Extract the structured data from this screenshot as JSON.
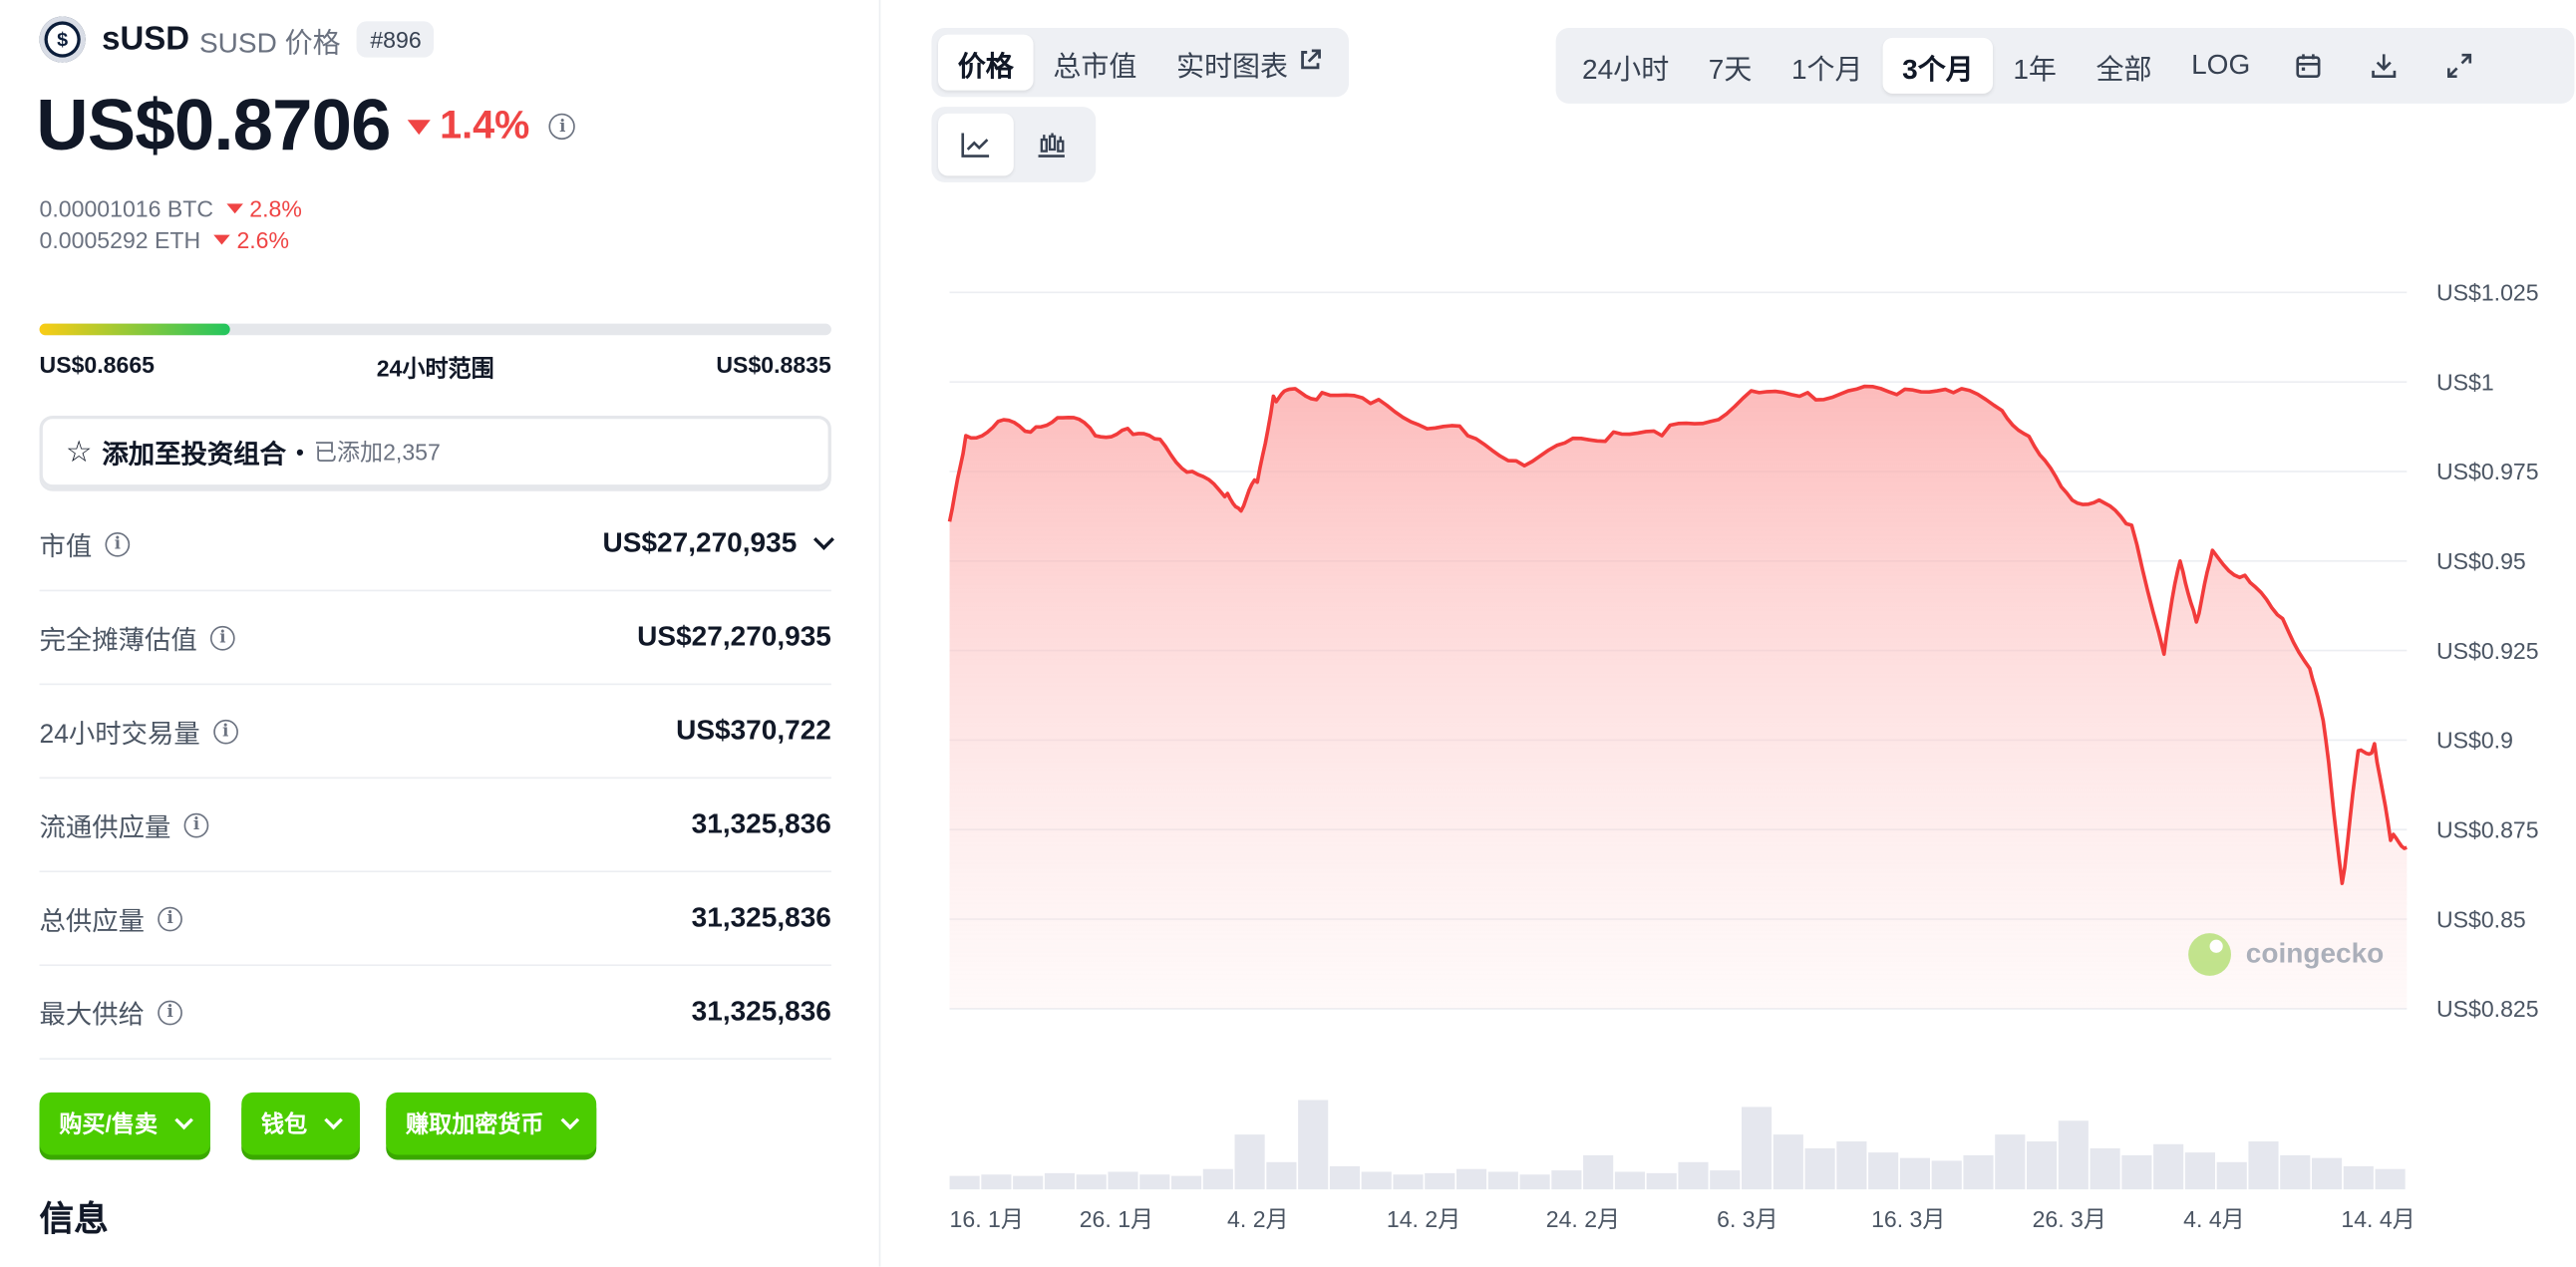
{
  "coin": {
    "symbol": "sUSD",
    "sub_title": "SUSD 价格",
    "rank": "#896",
    "logo_glyph": "$",
    "price": "US$0.8706",
    "change_24h": "1.4%",
    "btc_price": "0.00001016 BTC",
    "btc_change": "2.8%",
    "eth_price": "0.0005292 ETH",
    "eth_change": "2.6%"
  },
  "range": {
    "low": "US$0.8665",
    "label": "24小时范围",
    "high": "US$0.8835",
    "position_fraction": 0.24
  },
  "portfolio": {
    "label": "添加至投资组合",
    "added": "已添加2,357",
    "icon": "star-icon"
  },
  "stats": [
    {
      "key": "市值",
      "value": "US$27,270,935",
      "expandable": true
    },
    {
      "key": "完全摊薄估值",
      "value": "US$27,270,935"
    },
    {
      "key": "24小时交易量",
      "value": "US$370,722"
    },
    {
      "key": "流通供应量",
      "value": "31,325,836"
    },
    {
      "key": "总供应量",
      "value": "31,325,836"
    },
    {
      "key": "最大供给",
      "value": "31,325,836"
    }
  ],
  "actions": {
    "buy_sell": "购买/售卖",
    "wallet": "钱包",
    "earn": "赚取加密货币"
  },
  "info_title": "信息",
  "chart_tabs": {
    "price": "价格",
    "market_cap": "总市值",
    "live_chart": "实时图表"
  },
  "range_tabs": [
    "24小时",
    "7天",
    "1个月",
    "3个月",
    "1年",
    "全部",
    "LOG"
  ],
  "active_range": "3个月",
  "chart_type_icons": [
    "line-chart-icon",
    "candlestick-chart-icon"
  ],
  "toolbar_icons": [
    "calendar-icon",
    "download-icon",
    "expand-icon"
  ],
  "colors": {
    "accent_green": "#4bcc00",
    "negative": "#ef4444",
    "line": "#f23b3b"
  },
  "watermark": "coingecko",
  "chart_data": {
    "type": "area",
    "title": "",
    "xlabel": "",
    "ylabel": "",
    "ylim": [
      0.825,
      1.025
    ],
    "y_ticks": [
      "US$1.025",
      "US$1",
      "US$0.975",
      "US$0.95",
      "US$0.925",
      "US$0.9",
      "US$0.875",
      "US$0.85",
      "US$0.825"
    ],
    "x_ticks": [
      "16. 1月",
      "26. 1月",
      "4. 2月",
      "14. 2月",
      "24. 2月",
      "6. 3月",
      "16. 3月",
      "26. 3月",
      "4. 4月",
      "14. 4月"
    ],
    "grid": true,
    "series": [
      {
        "x": [
          "2025-01-15",
          "2025-01-16",
          "2025-01-18",
          "2025-01-20",
          "2025-01-22",
          "2025-01-24",
          "2025-01-26",
          "2025-01-28",
          "2025-01-30",
          "2025-02-01",
          "2025-02-02",
          "2025-02-03",
          "2025-02-04",
          "2025-02-05",
          "2025-02-07",
          "2025-02-10",
          "2025-02-13",
          "2025-02-16",
          "2025-02-19",
          "2025-02-22",
          "2025-02-25",
          "2025-02-28",
          "2025-03-03",
          "2025-03-06",
          "2025-03-09",
          "2025-03-12",
          "2025-03-15",
          "2025-03-18",
          "2025-03-21",
          "2025-03-23",
          "2025-03-25",
          "2025-03-27",
          "2025-03-29",
          "2025-03-31",
          "2025-04-01",
          "2025-04-02",
          "2025-04-03",
          "2025-04-05",
          "2025-04-07",
          "2025-04-09",
          "2025-04-10",
          "2025-04-11",
          "2025-04-12",
          "2025-04-13",
          "2025-04-14",
          "2025-04-15"
        ],
        "y": [
          0.961,
          0.985,
          0.989,
          0.986,
          0.99,
          0.985,
          0.987,
          0.984,
          0.975,
          0.968,
          0.964,
          0.972,
          0.996,
          0.998,
          0.997,
          0.994,
          0.988,
          0.985,
          0.978,
          0.983,
          0.986,
          0.985,
          0.989,
          0.997,
          0.997,
          0.998,
          0.998,
          0.997,
          0.992,
          0.982,
          0.969,
          0.967,
          0.96,
          0.924,
          0.95,
          0.933,
          0.953,
          0.946,
          0.935,
          0.92,
          0.9,
          0.86,
          0.897,
          0.899,
          0.872,
          0.87
        ]
      }
    ],
    "volume": [
      0.05,
      0.06,
      0.05,
      0.07,
      0.06,
      0.08,
      0.06,
      0.05,
      0.1,
      0.35,
      0.15,
      0.6,
      0.12,
      0.08,
      0.06,
      0.07,
      0.1,
      0.08,
      0.06,
      0.09,
      0.2,
      0.08,
      0.07,
      0.15,
      0.09,
      0.55,
      0.35,
      0.25,
      0.3,
      0.22,
      0.18,
      0.16,
      0.2,
      0.35,
      0.3,
      0.45,
      0.25,
      0.2,
      0.28,
      0.22,
      0.15,
      0.3,
      0.2,
      0.18,
      0.12,
      0.1
    ]
  }
}
